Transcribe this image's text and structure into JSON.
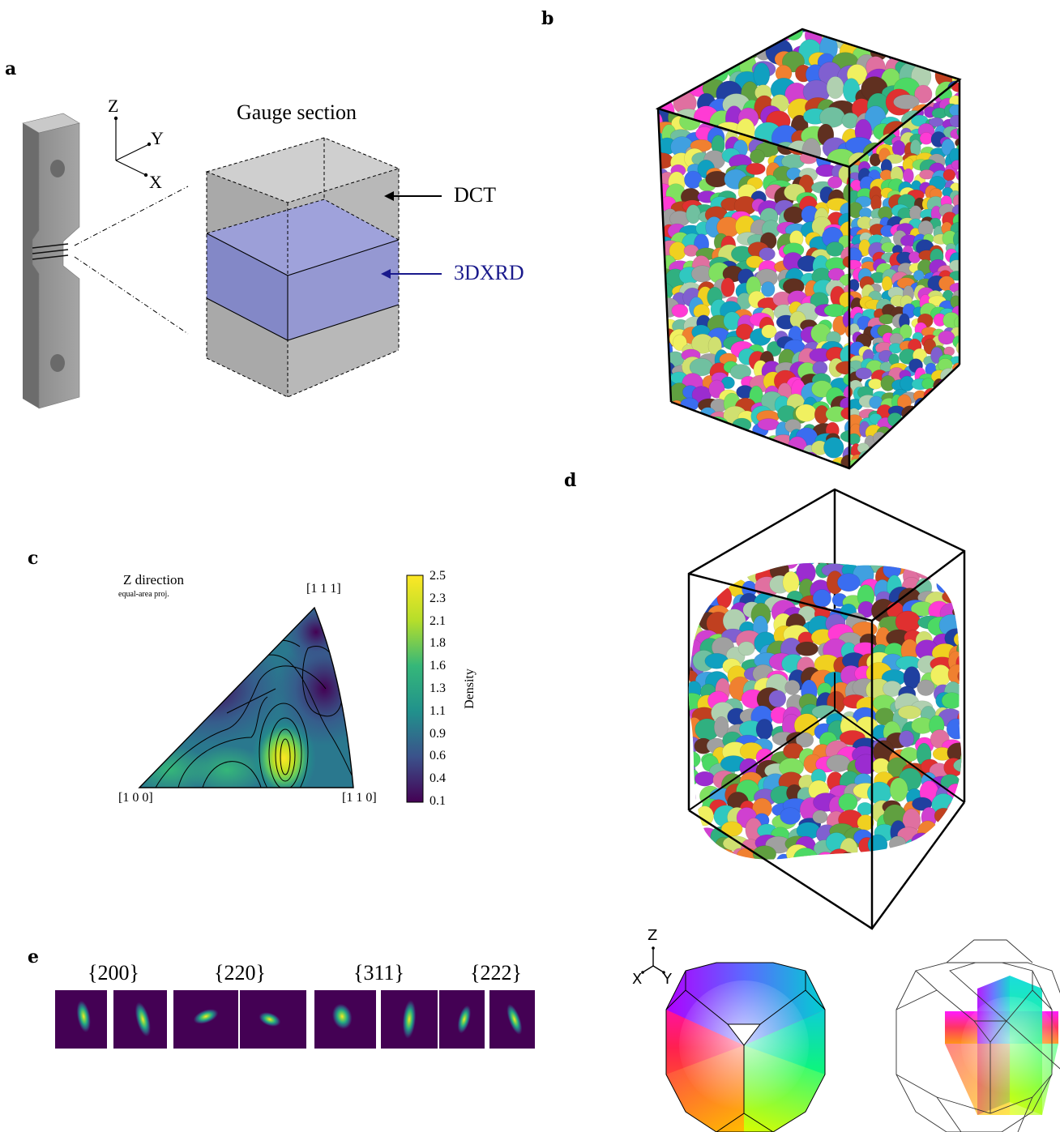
{
  "panels": {
    "a": {
      "label": "a",
      "gauge_title": "Gauge section",
      "axis_z": "Z",
      "axis_y": "Y",
      "axis_x": "X",
      "dct_label": "DCT",
      "xrd_label": "3DXRD",
      "colors": {
        "dct_arrow": "#000000",
        "xrd_arrow": "#1a1a8c",
        "xrd_band": "#8a8ed8",
        "box": "#9a9a9a"
      }
    },
    "b": {
      "label": "b"
    },
    "c": {
      "label": "c",
      "title": "Z direction",
      "subtitle": "equal-area proj.",
      "corner_111": "[1 1 1]",
      "corner_100": "[1 0 0]",
      "corner_110": "[1 1 0]",
      "colorbar_label": "Density",
      "colorbar_ticks": [
        "2.5",
        "2.3",
        "2.1",
        "1.8",
        "1.6",
        "1.3",
        "1.1",
        "0.9",
        "0.6",
        "0.4",
        "0.1"
      ],
      "colormap": "viridis"
    },
    "d": {
      "label": "d"
    },
    "e": {
      "label": "e",
      "reflections": [
        "{200}",
        "{220}",
        "{311}",
        "{222}"
      ]
    },
    "key": {
      "axis_z": "Z",
      "axis_x": "X",
      "axis_y": "Y"
    }
  }
}
